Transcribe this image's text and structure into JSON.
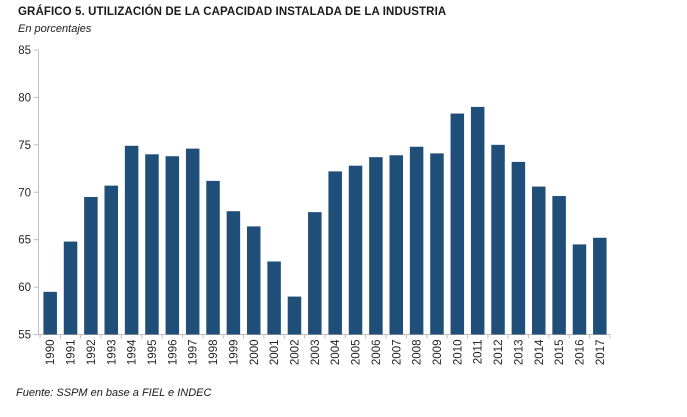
{
  "chart_data": {
    "type": "bar",
    "title": "GRÁFICO 5. UTILIZACIÓN DE LA CAPACIDAD INSTALADA DE LA INDUSTRIA",
    "subtitle": "En porcentajes",
    "source": "Fuente: SSPM en base a FIEL e INDEC",
    "categories": [
      "1990",
      "1991",
      "1992",
      "1993",
      "1994",
      "1995",
      "1996",
      "1997",
      "1998",
      "1999",
      "2000",
      "2001",
      "2002",
      "2003",
      "2004",
      "2005",
      "2006",
      "2007",
      "2008",
      "2009",
      "2010",
      "2011",
      "2012",
      "2013",
      "2014",
      "2015",
      "2016",
      "2017"
    ],
    "values": [
      59.5,
      64.8,
      69.5,
      70.7,
      74.9,
      74.0,
      73.8,
      74.6,
      71.2,
      68.0,
      66.4,
      62.7,
      59.0,
      67.9,
      72.2,
      72.8,
      73.7,
      73.9,
      74.8,
      74.1,
      78.3,
      79.0,
      75.0,
      73.2,
      70.6,
      69.6,
      64.5,
      65.2
    ],
    "xlabel": "",
    "ylabel": "",
    "ylim": [
      55,
      85
    ],
    "yticks": [
      55,
      60,
      65,
      70,
      75,
      80,
      85
    ],
    "grid": false,
    "legend": null,
    "x_tick_rotation": -90
  },
  "colors": {
    "bar": "#1F4E79",
    "axis_line": "#BFBFBF",
    "tick_label": "#262626"
  }
}
